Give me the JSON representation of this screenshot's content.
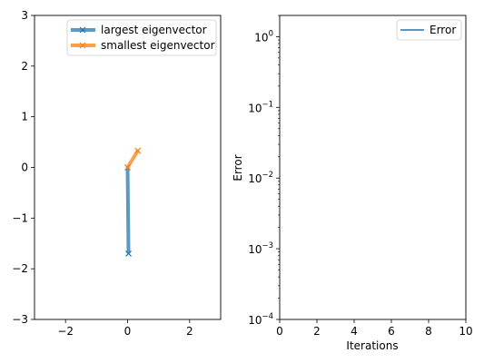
{
  "chart_data": [
    {
      "type": "line",
      "xlim": [
        -3,
        3
      ],
      "ylim": [
        -3,
        3
      ],
      "xticks": [
        -2,
        0,
        2
      ],
      "yticks": [
        -3,
        -2,
        -1,
        0,
        1,
        2,
        3
      ],
      "xtick_labels": [
        "−2",
        "0",
        "2"
      ],
      "ytick_labels": [
        "−3",
        "−2",
        "−1",
        "0",
        "1",
        "2",
        "3"
      ],
      "grid": false,
      "legend": "top-right",
      "series": [
        {
          "name": "largest eigenvector",
          "color": "#1f77b4",
          "marker": "x",
          "x": [
            0,
            0.03
          ],
          "y": [
            0,
            -1.7
          ]
        },
        {
          "name": "smallest eigenvector",
          "color": "#ff7f0e",
          "marker": "x",
          "x": [
            0,
            0.33
          ],
          "y": [
            0,
            0.33
          ]
        }
      ]
    },
    {
      "type": "line",
      "xlabel": "Iterations",
      "ylabel": "Error",
      "xlim": [
        0,
        10
      ],
      "ylim": [
        0.0001,
        2
      ],
      "yscale": "log",
      "xticks": [
        0,
        2,
        4,
        6,
        8,
        10
      ],
      "xtick_labels": [
        "0",
        "2",
        "4",
        "6",
        "8",
        "10"
      ],
      "yticks": [
        0.0001,
        0.001,
        0.01,
        0.1,
        1
      ],
      "ytick_labels": [
        {
          "base": "10",
          "exp": "−4"
        },
        {
          "base": "10",
          "exp": "−3"
        },
        {
          "base": "10",
          "exp": "−2"
        },
        {
          "base": "10",
          "exp": "−1"
        },
        {
          "base": "10",
          "exp": "0"
        }
      ],
      "grid": false,
      "legend": "top-right",
      "series": [
        {
          "name": "Error",
          "color": "#1f77b4",
          "x": [],
          "y": []
        }
      ]
    }
  ]
}
